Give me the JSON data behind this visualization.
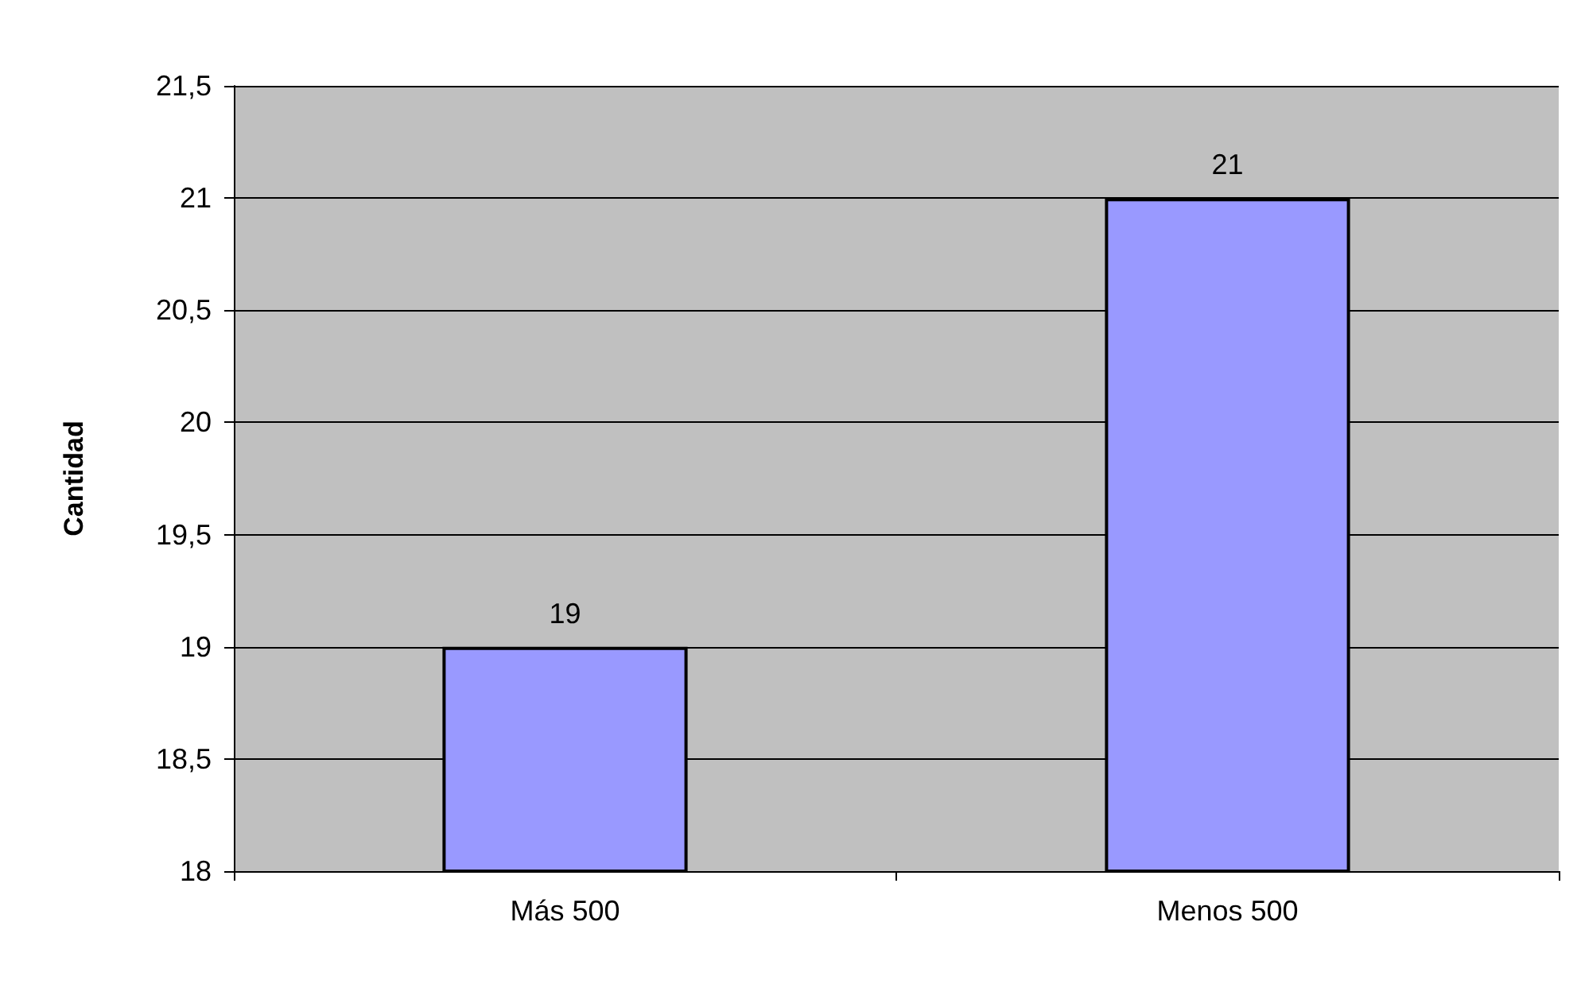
{
  "chart_data": {
    "type": "bar",
    "ylabel": "Cantidad",
    "categories": [
      "Más 500",
      "Menos 500"
    ],
    "values": [
      19,
      21
    ],
    "color": "#9999ff",
    "ylim": [
      18,
      21.5
    ],
    "yticks": [
      18,
      {
        "value": 18.5,
        "label": "18,5"
      },
      19,
      {
        "value": 19.5,
        "label": "19,5"
      },
      20,
      {
        "value": 20.5,
        "label": "20,5"
      },
      21,
      {
        "value": 21.5,
        "label": "21,5"
      }
    ],
    "grid": "y",
    "data_labels": true
  }
}
